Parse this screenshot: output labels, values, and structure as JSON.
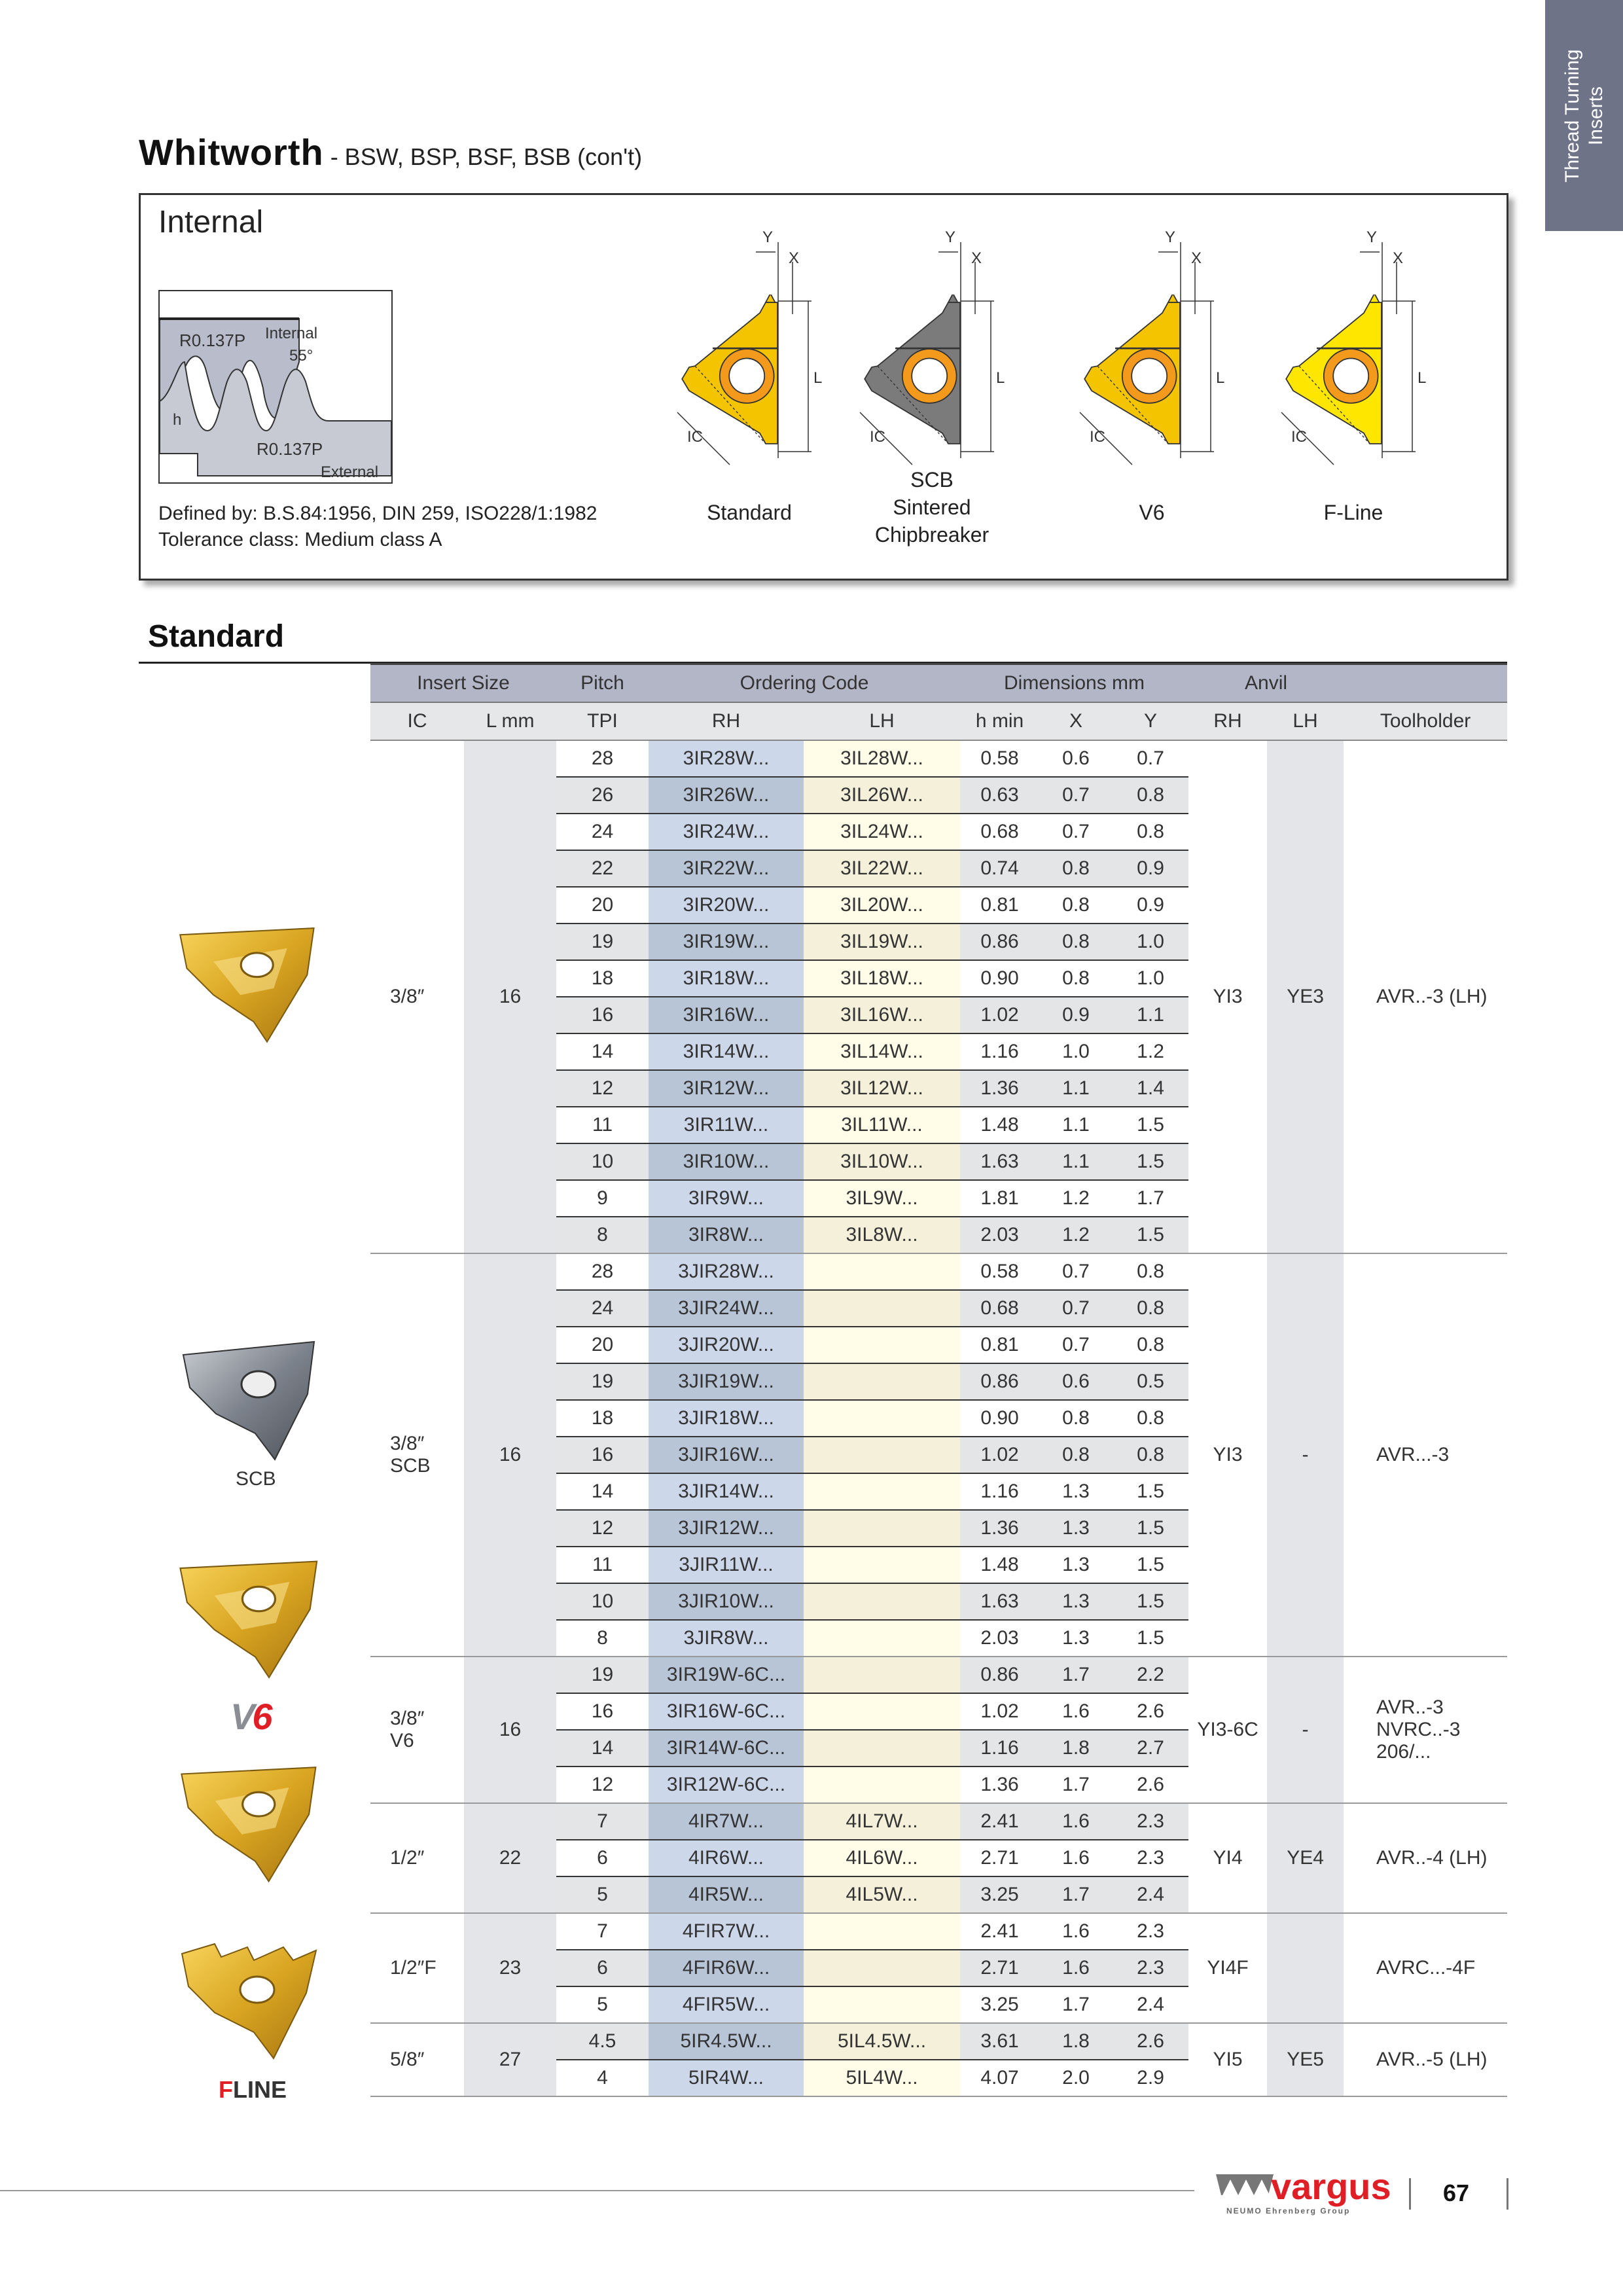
{
  "side_tab": {
    "line1": "Thread Turning",
    "line2": "Inserts",
    "color": "#6e7388"
  },
  "title": {
    "main": "Whitworth",
    "sub": " - BSW, BSP, BSF, BSB (con't)"
  },
  "info": {
    "heading": "Internal",
    "profile_labels": {
      "r_internal": "R0.137P",
      "internal": "Internal",
      "angle": "55°",
      "h": "h",
      "r_external": "R0.137P",
      "external": "External"
    },
    "defined_by": "Defined by: B.S.84:1956, DIN 259, ISO228/1:1982",
    "tolerance": "Tolerance class: Medium class A",
    "dim_labels": {
      "y": "Y",
      "x": "X",
      "l": "L",
      "ic": "IC"
    },
    "inserts": [
      {
        "label": "Standard",
        "color": "#f5c400"
      },
      {
        "label": "SCB\nSintered\nChipbreaker",
        "color": "#7b7b7b"
      },
      {
        "label": "V6",
        "color": "#f5c400"
      },
      {
        "label": "F-Line",
        "color": "#ffe600"
      }
    ]
  },
  "section_heading": "Standard",
  "table": {
    "header1": [
      "Insert Size",
      "Pitch",
      "Ordering Code",
      "Dimensions mm",
      "Anvil",
      ""
    ],
    "header2": [
      "IC",
      "L mm",
      "TPI",
      "RH",
      "LH",
      "h min",
      "X",
      "Y",
      "RH",
      "LH",
      "Toolholder"
    ],
    "groups": [
      {
        "ic": "3/8″",
        "l": "16",
        "anvil_rh": "YI3",
        "anvil_lh": "YE3",
        "toolholder": "AVR..-3 (LH)",
        "rows": [
          [
            "28",
            "3IR28W...",
            "3IL28W...",
            "0.58",
            "0.6",
            "0.7"
          ],
          [
            "26",
            "3IR26W...",
            "3IL26W...",
            "0.63",
            "0.7",
            "0.8"
          ],
          [
            "24",
            "3IR24W...",
            "3IL24W...",
            "0.68",
            "0.7",
            "0.8"
          ],
          [
            "22",
            "3IR22W...",
            "3IL22W...",
            "0.74",
            "0.8",
            "0.9"
          ],
          [
            "20",
            "3IR20W...",
            "3IL20W...",
            "0.81",
            "0.8",
            "0.9"
          ],
          [
            "19",
            "3IR19W...",
            "3IL19W...",
            "0.86",
            "0.8",
            "1.0"
          ],
          [
            "18",
            "3IR18W...",
            "3IL18W...",
            "0.90",
            "0.8",
            "1.0"
          ],
          [
            "16",
            "3IR16W...",
            "3IL16W...",
            "1.02",
            "0.9",
            "1.1"
          ],
          [
            "14",
            "3IR14W...",
            "3IL14W...",
            "1.16",
            "1.0",
            "1.2"
          ],
          [
            "12",
            "3IR12W...",
            "3IL12W...",
            "1.36",
            "1.1",
            "1.4"
          ],
          [
            "11",
            "3IR11W...",
            "3IL11W...",
            "1.48",
            "1.1",
            "1.5"
          ],
          [
            "10",
            "3IR10W...",
            "3IL10W...",
            "1.63",
            "1.1",
            "1.5"
          ],
          [
            "9",
            "3IR9W...",
            "3IL9W...",
            "1.81",
            "1.2",
            "1.7"
          ],
          [
            "8",
            "3IR8W...",
            "3IL8W...",
            "2.03",
            "1.2",
            "1.5"
          ]
        ]
      },
      {
        "ic": "3/8″\nSCB",
        "l": "16",
        "anvil_rh": "YI3",
        "anvil_lh": "-",
        "toolholder": "AVR...-3",
        "rows": [
          [
            "28",
            "3JIR28W...",
            "",
            "0.58",
            "0.7",
            "0.8"
          ],
          [
            "24",
            "3JIR24W...",
            "",
            "0.68",
            "0.7",
            "0.8"
          ],
          [
            "20",
            "3JIR20W...",
            "",
            "0.81",
            "0.7",
            "0.8"
          ],
          [
            "19",
            "3JIR19W...",
            "",
            "0.86",
            "0.6",
            "0.5"
          ],
          [
            "18",
            "3JIR18W...",
            "",
            "0.90",
            "0.8",
            "0.8"
          ],
          [
            "16",
            "3JIR16W...",
            "",
            "1.02",
            "0.8",
            "0.8"
          ],
          [
            "14",
            "3JIR14W...",
            "",
            "1.16",
            "1.3",
            "1.5"
          ],
          [
            "12",
            "3JIR12W...",
            "",
            "1.36",
            "1.3",
            "1.5"
          ],
          [
            "11",
            "3JIR11W...",
            "",
            "1.48",
            "1.3",
            "1.5"
          ],
          [
            "10",
            "3JIR10W...",
            "",
            "1.63",
            "1.3",
            "1.5"
          ],
          [
            "8",
            "3JIR8W...",
            "",
            "2.03",
            "1.3",
            "1.5"
          ]
        ]
      },
      {
        "ic": "3/8″\nV6",
        "l": "16",
        "anvil_rh": "YI3-6C",
        "anvil_lh": "-",
        "toolholder": "AVR..-3\nNVRC..-3 206/...",
        "rows": [
          [
            "19",
            "3IR19W-6C...",
            "",
            "0.86",
            "1.7",
            "2.2"
          ],
          [
            "16",
            "3IR16W-6C...",
            "",
            "1.02",
            "1.6",
            "2.6"
          ],
          [
            "14",
            "3IR14W-6C...",
            "",
            "1.16",
            "1.8",
            "2.7"
          ],
          [
            "12",
            "3IR12W-6C...",
            "",
            "1.36",
            "1.7",
            "2.6"
          ]
        ]
      },
      {
        "ic": "1/2″",
        "l": "22",
        "anvil_rh": "YI4",
        "anvil_lh": "YE4",
        "toolholder": "AVR..-4 (LH)",
        "rows": [
          [
            "7",
            "4IR7W...",
            "4IL7W...",
            "2.41",
            "1.6",
            "2.3"
          ],
          [
            "6",
            "4IR6W...",
            "4IL6W...",
            "2.71",
            "1.6",
            "2.3"
          ],
          [
            "5",
            "4IR5W...",
            "4IL5W...",
            "3.25",
            "1.7",
            "2.4"
          ]
        ]
      },
      {
        "ic": "1/2″F",
        "l": "23",
        "anvil_rh": "YI4F",
        "anvil_lh": "",
        "toolholder": "AVRC...-4F",
        "rows": [
          [
            "7",
            "4FIR7W...",
            "",
            "2.41",
            "1.6",
            "2.3"
          ],
          [
            "6",
            "4FIR6W...",
            "",
            "2.71",
            "1.6",
            "2.3"
          ],
          [
            "5",
            "4FIR5W...",
            "",
            "3.25",
            "1.7",
            "2.4"
          ]
        ]
      },
      {
        "ic": "5/8″",
        "l": "27",
        "anvil_rh": "YI5",
        "anvil_lh": "YE5",
        "toolholder": "AVR..-5 (LH)",
        "rows": [
          [
            "4.5",
            "5IR4.5W...",
            "5IL4.5W...",
            "3.61",
            "1.8",
            "2.6"
          ],
          [
            "4",
            "5IR4W...",
            "5IL4W...",
            "4.07",
            "2.0",
            "2.9"
          ]
        ]
      }
    ]
  },
  "product_labels": {
    "scb": "SCB",
    "v6_logo": "V6",
    "fline_logo": "F-LINE"
  },
  "footer": {
    "brand": "vargus",
    "brand_sub": "NEUMO Ehrenberg Group",
    "page_number": "67",
    "brand_color": "#e01e26"
  }
}
